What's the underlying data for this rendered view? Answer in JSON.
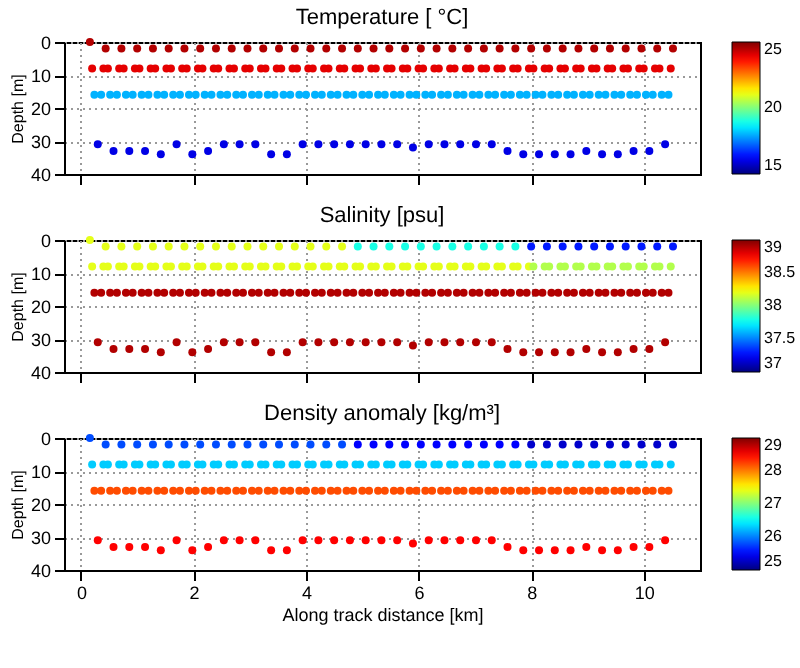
{
  "chart_data": [
    {
      "type": "scatter",
      "title": "Temperature [ °C]",
      "ylabel": "Depth [m]",
      "xlim": [
        -0.3,
        11
      ],
      "xticks": [
        0,
        2,
        4,
        6,
        8,
        10
      ],
      "ylim": [
        40,
        0
      ],
      "yticks": [
        0,
        10,
        20,
        30,
        40
      ],
      "clim": [
        15,
        25
      ],
      "cticks": [
        15,
        20,
        25
      ],
      "grid": true,
      "marker": "circle",
      "tick_labels": "y",
      "series": [
        {
          "x": [
            0.16,
            0.2,
            0.24,
            0.3,
            0.36,
            0.4,
            0.44,
            0.48,
            0.52,
            0.58,
            0.64,
            0.68,
            0.72,
            0.76,
            0.8,
            0.86,
            0.92,
            0.96,
            1,
            1.04,
            1.08,
            1.14,
            1.2,
            1.24,
            1.28,
            1.32,
            1.36,
            1.42,
            1.48,
            1.52,
            1.56,
            1.6,
            1.64,
            1.7,
            1.76,
            1.8,
            1.84,
            1.88,
            1.92,
            1.98,
            2.04,
            2.08,
            2.12,
            2.16,
            2.2,
            2.26,
            2.32,
            2.36,
            2.4,
            2.44,
            2.48,
            2.54,
            2.6,
            2.64,
            2.68,
            2.72,
            2.76,
            2.82,
            2.88,
            2.92,
            2.96,
            3,
            3.04,
            3.1,
            3.16,
            3.2,
            3.24,
            3.28,
            3.32,
            3.38,
            3.44,
            3.48,
            3.52,
            3.56,
            3.6,
            3.66,
            3.72,
            3.76,
            3.8,
            3.84,
            3.88,
            3.94,
            4,
            4.04,
            4.08,
            4.12,
            4.16,
            4.22,
            4.28,
            4.32,
            4.36,
            4.4,
            4.44,
            4.5,
            4.56,
            4.6,
            4.64,
            4.68,
            4.72,
            4.78,
            4.84,
            4.88,
            4.92,
            4.96,
            5,
            5.06,
            5.12,
            5.16,
            5.2,
            5.24,
            5.28,
            5.34,
            5.4,
            5.44,
            5.48,
            5.52,
            5.56,
            5.62,
            5.68,
            5.72,
            5.76,
            5.8,
            5.84,
            5.9,
            5.96,
            6,
            6.04,
            6.08,
            6.12,
            6.18,
            6.24,
            6.28,
            6.32,
            6.36,
            6.4,
            6.46,
            6.52,
            6.56,
            6.6,
            6.64,
            6.68,
            6.74,
            6.8,
            6.84,
            6.88,
            6.92,
            6.96,
            7.02,
            7.08,
            7.12,
            7.16,
            7.2,
            7.24,
            7.3,
            7.36,
            7.4,
            7.44,
            7.48,
            7.52,
            7.58,
            7.64,
            7.68,
            7.72,
            7.76,
            7.8,
            7.86,
            7.92,
            7.96,
            8,
            8.04,
            8.08,
            8.14,
            8.2,
            8.24,
            8.28,
            8.32,
            8.36,
            8.42,
            8.48,
            8.52,
            8.56,
            8.6,
            8.64,
            8.7,
            8.76,
            8.8,
            8.84,
            8.88,
            8.92,
            8.98,
            9.04,
            9.08,
            9.12,
            9.16,
            9.2,
            9.26,
            9.32,
            9.36,
            9.4,
            9.44,
            9.48,
            9.54,
            9.6,
            9.64,
            9.68,
            9.72,
            9.76,
            9.82,
            9.88,
            9.92,
            9.96,
            10,
            10.04,
            10.1,
            10.16,
            10.2,
            10.24,
            10.28,
            10.32,
            10.38,
            10.44,
            10.48,
            10.52
          ],
          "values": [
            0,
            8,
            16,
            31,
            16,
            8,
            2,
            8,
            16,
            33,
            16,
            8,
            2,
            8,
            16,
            33,
            16,
            8,
            2,
            8,
            16,
            33,
            16,
            8,
            2,
            8,
            16,
            34,
            16,
            8,
            2,
            8,
            16,
            31,
            16,
            8,
            2,
            8,
            16,
            34,
            16,
            8,
            2,
            8,
            16,
            33,
            16,
            8,
            2,
            8,
            16,
            31,
            16,
            8,
            2,
            8,
            16,
            31,
            16,
            8,
            2,
            8,
            16,
            31,
            16,
            8,
            2,
            8,
            16,
            34,
            16,
            8,
            2,
            8,
            16,
            34,
            16,
            8,
            2,
            8,
            16,
            31,
            16,
            8,
            2,
            8,
            16,
            31,
            16,
            8,
            2,
            8,
            16,
            31,
            16,
            8,
            2,
            8,
            16,
            31,
            16,
            8,
            2,
            8,
            16,
            31,
            16,
            8,
            2,
            8,
            16,
            31,
            16,
            8,
            2,
            8,
            16,
            31,
            16,
            8,
            2,
            8,
            16,
            32,
            16,
            8,
            2,
            8,
            16,
            31,
            16,
            8,
            2,
            8,
            16,
            31,
            16,
            8,
            2,
            8,
            16,
            31,
            16,
            8,
            2,
            8,
            16,
            31,
            16,
            8,
            2,
            8,
            16,
            31,
            16,
            8,
            2,
            8,
            16,
            33,
            16,
            8,
            2,
            8,
            16,
            34,
            16,
            8,
            2,
            8,
            16,
            34,
            16,
            8,
            2,
            8,
            16,
            34,
            16,
            8,
            2,
            8,
            16,
            34,
            16,
            8,
            2,
            8,
            16,
            33,
            16,
            8,
            2,
            8,
            16,
            34,
            16,
            8,
            2,
            8,
            16,
            34,
            16,
            8,
            2,
            8,
            16,
            33,
            16,
            8,
            2,
            8,
            16,
            33,
            16,
            8,
            2,
            8,
            16,
            31,
            16,
            8,
            2
          ],
          "cvalues": [
            24.5,
            24,
            18,
            16,
            18,
            24,
            24.5,
            24,
            18,
            16,
            18,
            24,
            24.5,
            24,
            18,
            16,
            18,
            24,
            24.5,
            24,
            18,
            16,
            18,
            24,
            24.5,
            24,
            18,
            16,
            18,
            24,
            24.5,
            24,
            18,
            16,
            18,
            24,
            24.5,
            24,
            18,
            16,
            18,
            24,
            24.5,
            24,
            18,
            16,
            18,
            24,
            24.5,
            24,
            18,
            16,
            18,
            24,
            24.5,
            24,
            18,
            16,
            18,
            24,
            24.5,
            24,
            18,
            16,
            18,
            24,
            24.5,
            24,
            18,
            16,
            18,
            24,
            24.5,
            24,
            18,
            16,
            18,
            24,
            24.5,
            24,
            18,
            16,
            18,
            24,
            24.5,
            24,
            18,
            16,
            18,
            24,
            24.5,
            24,
            18,
            16,
            18,
            24,
            24.5,
            24,
            18,
            16,
            18,
            24,
            24.5,
            24,
            18,
            16,
            18,
            24,
            24.5,
            24,
            18,
            16,
            18,
            24,
            24.5,
            24,
            18,
            16,
            18,
            24,
            24.5,
            24,
            18,
            16,
            18,
            24,
            24.5,
            24,
            18,
            16,
            18,
            24,
            24.5,
            24,
            18,
            16,
            18,
            24,
            24.5,
            24,
            18,
            16,
            18,
            24,
            24.5,
            24,
            18,
            16,
            18,
            24,
            24.5,
            24,
            18,
            16,
            18,
            24,
            24.5,
            24,
            18,
            16,
            18,
            24,
            24.5,
            24,
            18,
            16,
            18,
            24,
            24.5,
            24,
            18,
            16,
            18,
            24,
            24.5,
            24,
            18,
            16,
            18,
            24,
            24.5,
            24,
            18,
            16,
            18,
            24,
            24.5,
            24,
            18,
            16,
            18,
            24,
            24.5,
            24,
            18,
            16,
            18,
            24,
            24.5,
            24,
            18,
            16,
            18,
            24,
            24.5,
            24,
            18,
            16,
            18,
            24,
            24.5,
            24,
            18,
            16,
            18,
            24,
            24.5,
            24,
            18,
            16,
            18,
            24,
            24.5
          ]
        }
      ]
    },
    {
      "type": "scatter",
      "title": "Salinity [psu]",
      "ylabel": "Depth [m]",
      "xlim": [
        -0.3,
        11
      ],
      "xticks": [
        0,
        2,
        4,
        6,
        8,
        10
      ],
      "ylim": [
        40,
        0
      ],
      "yticks": [
        0,
        10,
        20,
        30,
        40
      ],
      "clim": [
        37,
        39
      ],
      "cticks": [
        37,
        37.5,
        38,
        38.5,
        39
      ],
      "grid": true,
      "marker": "circle",
      "tick_labels": "y",
      "series": [
        {
          "x": [
            0.16,
            0.2,
            0.24,
            0.3,
            0.36,
            0.4,
            0.44,
            0.48,
            0.52,
            0.58,
            0.64,
            0.68,
            0.72,
            0.76,
            0.8,
            0.86,
            0.92,
            0.96,
            1,
            1.04,
            1.08,
            1.14,
            1.2,
            1.24,
            1.28,
            1.32,
            1.36,
            1.42,
            1.48,
            1.52,
            1.56,
            1.6,
            1.64,
            1.7,
            1.76,
            1.8,
            1.84,
            1.88,
            1.92,
            1.98,
            2.04,
            2.08,
            2.12,
            2.16,
            2.2,
            2.26,
            2.32,
            2.36,
            2.4,
            2.44,
            2.48,
            2.54,
            2.6,
            2.64,
            2.68,
            2.72,
            2.76,
            2.82,
            2.88,
            2.92,
            2.96,
            3,
            3.04,
            3.1,
            3.16,
            3.2,
            3.24,
            3.28,
            3.32,
            3.38,
            3.44,
            3.48,
            3.52,
            3.56,
            3.6,
            3.66,
            3.72,
            3.76,
            3.8,
            3.84,
            3.88,
            3.94,
            4,
            4.04,
            4.08,
            4.12,
            4.16,
            4.22,
            4.28,
            4.32,
            4.36,
            4.4,
            4.44,
            4.5,
            4.56,
            4.6,
            4.64,
            4.68,
            4.72,
            4.78,
            4.84,
            4.88,
            4.92,
            4.96,
            5,
            5.06,
            5.12,
            5.16,
            5.2,
            5.24,
            5.28,
            5.34,
            5.4,
            5.44,
            5.48,
            5.52,
            5.56,
            5.62,
            5.68,
            5.72,
            5.76,
            5.8,
            5.84,
            5.9,
            5.96,
            6,
            6.04,
            6.08,
            6.12,
            6.18,
            6.24,
            6.28,
            6.32,
            6.36,
            6.4,
            6.46,
            6.52,
            6.56,
            6.6,
            6.64,
            6.68,
            6.74,
            6.8,
            6.84,
            6.88,
            6.92,
            6.96,
            7.02,
            7.08,
            7.12,
            7.16,
            7.2,
            7.24,
            7.3,
            7.36,
            7.4,
            7.44,
            7.48,
            7.52,
            7.58,
            7.64,
            7.68,
            7.72,
            7.76,
            7.8,
            7.86,
            7.92,
            7.96,
            8,
            8.04,
            8.08,
            8.14,
            8.2,
            8.24,
            8.28,
            8.32,
            8.36,
            8.42,
            8.48,
            8.52,
            8.56,
            8.6,
            8.64,
            8.7,
            8.76,
            8.8,
            8.84,
            8.88,
            8.92,
            8.98,
            9.04,
            9.08,
            9.12,
            9.16,
            9.2,
            9.26,
            9.32,
            9.36,
            9.4,
            9.44,
            9.48,
            9.54,
            9.6,
            9.64,
            9.68,
            9.72,
            9.76,
            9.82,
            9.88,
            9.92,
            9.96,
            10,
            10.04,
            10.1,
            10.16,
            10.2,
            10.24,
            10.28,
            10.32,
            10.38,
            10.44,
            10.48,
            10.52
          ],
          "values": [
            0,
            8,
            16,
            31,
            16,
            8,
            2,
            8,
            16,
            33,
            16,
            8,
            2,
            8,
            16,
            33,
            16,
            8,
            2,
            8,
            16,
            33,
            16,
            8,
            2,
            8,
            16,
            34,
            16,
            8,
            2,
            8,
            16,
            31,
            16,
            8,
            2,
            8,
            16,
            34,
            16,
            8,
            2,
            8,
            16,
            33,
            16,
            8,
            2,
            8,
            16,
            31,
            16,
            8,
            2,
            8,
            16,
            31,
            16,
            8,
            2,
            8,
            16,
            31,
            16,
            8,
            2,
            8,
            16,
            34,
            16,
            8,
            2,
            8,
            16,
            34,
            16,
            8,
            2,
            8,
            16,
            31,
            16,
            8,
            2,
            8,
            16,
            31,
            16,
            8,
            2,
            8,
            16,
            31,
            16,
            8,
            2,
            8,
            16,
            31,
            16,
            8,
            2,
            8,
            16,
            31,
            16,
            8,
            2,
            8,
            16,
            31,
            16,
            8,
            2,
            8,
            16,
            31,
            16,
            8,
            2,
            8,
            16,
            32,
            16,
            8,
            2,
            8,
            16,
            31,
            16,
            8,
            2,
            8,
            16,
            31,
            16,
            8,
            2,
            8,
            16,
            31,
            16,
            8,
            2,
            8,
            16,
            31,
            16,
            8,
            2,
            8,
            16,
            31,
            16,
            8,
            2,
            8,
            16,
            33,
            16,
            8,
            2,
            8,
            16,
            34,
            16,
            8,
            2,
            8,
            16,
            34,
            16,
            8,
            2,
            8,
            16,
            34,
            16,
            8,
            2,
            8,
            16,
            34,
            16,
            8,
            2,
            8,
            16,
            33,
            16,
            8,
            2,
            8,
            16,
            34,
            16,
            8,
            2,
            8,
            16,
            34,
            16,
            8,
            2,
            8,
            16,
            33,
            16,
            8,
            2,
            8,
            16,
            33,
            16,
            8,
            2,
            8,
            16,
            31,
            16,
            8,
            2
          ],
          "cvalues": [
            38.2,
            38.2,
            38.9,
            38.9,
            38.9,
            38.2,
            38.2,
            38.2,
            38.9,
            38.9,
            38.9,
            38.2,
            38.2,
            38.2,
            38.9,
            38.9,
            38.9,
            38.2,
            38.2,
            38.2,
            38.9,
            38.9,
            38.9,
            38.2,
            38.2,
            38.2,
            38.9,
            38.9,
            38.9,
            38.2,
            38.2,
            38.2,
            38.9,
            38.9,
            38.9,
            38.2,
            38.2,
            38.2,
            38.9,
            38.9,
            38.9,
            38.2,
            38.2,
            38.2,
            38.9,
            38.9,
            38.9,
            38.2,
            38.2,
            38.2,
            38.9,
            38.9,
            38.9,
            38.2,
            38.2,
            38.2,
            38.9,
            38.9,
            38.9,
            38.2,
            38.2,
            38.2,
            38.9,
            38.9,
            38.9,
            38.2,
            38.2,
            38.2,
            38.9,
            38.9,
            38.9,
            38.2,
            38.2,
            38.2,
            38.9,
            38.9,
            38.9,
            38.2,
            38.2,
            38.2,
            38.9,
            38.9,
            38.9,
            38.2,
            38.2,
            38.2,
            38.9,
            38.9,
            38.9,
            38.2,
            38.2,
            38.2,
            38.9,
            38.9,
            38.9,
            38.2,
            38.2,
            38.2,
            38.9,
            38.9,
            38.9,
            38.2,
            37.8,
            38.2,
            38.9,
            38.9,
            38.9,
            38.2,
            37.8,
            38.2,
            38.9,
            38.9,
            38.9,
            38.2,
            37.8,
            38.2,
            38.9,
            38.9,
            38.9,
            38.2,
            37.8,
            38.2,
            38.9,
            38.9,
            38.9,
            38.2,
            37.8,
            38.2,
            38.9,
            38.9,
            38.9,
            38.2,
            37.8,
            38.2,
            38.9,
            38.9,
            38.9,
            38.2,
            37.8,
            38.2,
            38.9,
            38.9,
            38.9,
            38.2,
            37.8,
            38.2,
            38.9,
            38.9,
            38.9,
            38.2,
            37.8,
            38.2,
            38.9,
            38.9,
            38.9,
            38.2,
            37.8,
            38.2,
            38.9,
            38.9,
            38.9,
            38.2,
            37.8,
            38.2,
            38.9,
            38.9,
            38.9,
            38.2,
            37.3,
            38.1,
            38.9,
            38.9,
            38.9,
            38.1,
            37.3,
            38.1,
            38.9,
            38.9,
            38.9,
            38.1,
            37.3,
            38.1,
            38.9,
            38.9,
            38.9,
            38.1,
            37.3,
            38.1,
            38.9,
            38.9,
            38.9,
            38.1,
            37.3,
            38.1,
            38.9,
            38.9,
            38.9,
            38.1,
            37.3,
            38.1,
            38.9,
            38.9,
            38.9,
            38.1,
            37.3,
            38.1,
            38.9,
            38.9,
            38.9,
            38.1,
            37.3,
            38.1,
            38.9,
            38.9,
            38.9,
            38.1,
            37.3,
            38.1,
            38.9,
            38.9,
            38.9,
            38.1,
            37.3
          ]
        }
      ]
    },
    {
      "type": "scatter",
      "title": "Density anomaly [kg/m³]",
      "xlabel": "Along track distance [km]",
      "ylabel": "Depth [m]",
      "xlim": [
        -0.3,
        11
      ],
      "xticks": [
        0,
        2,
        4,
        6,
        8,
        10
      ],
      "ylim": [
        40,
        0
      ],
      "yticks": [
        0,
        10,
        20,
        30,
        40
      ],
      "clim": [
        25,
        29
      ],
      "cticks": [
        25,
        26,
        27,
        28,
        29
      ],
      "grid": true,
      "marker": "circle",
      "series": [
        {
          "x": [
            0.16,
            0.2,
            0.24,
            0.3,
            0.36,
            0.4,
            0.44,
            0.48,
            0.52,
            0.58,
            0.64,
            0.68,
            0.72,
            0.76,
            0.8,
            0.86,
            0.92,
            0.96,
            1,
            1.04,
            1.08,
            1.14,
            1.2,
            1.24,
            1.28,
            1.32,
            1.36,
            1.42,
            1.48,
            1.52,
            1.56,
            1.6,
            1.64,
            1.7,
            1.76,
            1.8,
            1.84,
            1.88,
            1.92,
            1.98,
            2.04,
            2.08,
            2.12,
            2.16,
            2.2,
            2.26,
            2.32,
            2.36,
            2.4,
            2.44,
            2.48,
            2.54,
            2.6,
            2.64,
            2.68,
            2.72,
            2.76,
            2.82,
            2.88,
            2.92,
            2.96,
            3,
            3.04,
            3.1,
            3.16,
            3.2,
            3.24,
            3.28,
            3.32,
            3.38,
            3.44,
            3.48,
            3.52,
            3.56,
            3.6,
            3.66,
            3.72,
            3.76,
            3.8,
            3.84,
            3.88,
            3.94,
            4,
            4.04,
            4.08,
            4.12,
            4.16,
            4.22,
            4.28,
            4.32,
            4.36,
            4.4,
            4.44,
            4.5,
            4.56,
            4.6,
            4.64,
            4.68,
            4.72,
            4.78,
            4.84,
            4.88,
            4.92,
            4.96,
            5,
            5.06,
            5.12,
            5.16,
            5.2,
            5.24,
            5.28,
            5.34,
            5.4,
            5.44,
            5.48,
            5.52,
            5.56,
            5.62,
            5.68,
            5.72,
            5.76,
            5.8,
            5.84,
            5.9,
            5.96,
            6,
            6.04,
            6.08,
            6.12,
            6.18,
            6.24,
            6.28,
            6.32,
            6.36,
            6.4,
            6.46,
            6.52,
            6.56,
            6.6,
            6.64,
            6.68,
            6.74,
            6.8,
            6.84,
            6.88,
            6.92,
            6.96,
            7.02,
            7.08,
            7.12,
            7.16,
            7.2,
            7.24,
            7.3,
            7.36,
            7.4,
            7.44,
            7.48,
            7.52,
            7.58,
            7.64,
            7.68,
            7.72,
            7.76,
            7.8,
            7.86,
            7.92,
            7.96,
            8,
            8.04,
            8.08,
            8.14,
            8.2,
            8.24,
            8.28,
            8.32,
            8.36,
            8.42,
            8.48,
            8.52,
            8.56,
            8.6,
            8.64,
            8.7,
            8.76,
            8.8,
            8.84,
            8.88,
            8.92,
            8.98,
            9.04,
            9.08,
            9.12,
            9.16,
            9.2,
            9.26,
            9.32,
            9.36,
            9.4,
            9.44,
            9.48,
            9.54,
            9.6,
            9.64,
            9.68,
            9.72,
            9.76,
            9.82,
            9.88,
            9.92,
            9.96,
            10,
            10.04,
            10.1,
            10.16,
            10.2,
            10.24,
            10.28,
            10.32,
            10.38,
            10.44,
            10.48,
            10.52
          ],
          "values": [
            0,
            8,
            16,
            31,
            16,
            8,
            2,
            8,
            16,
            33,
            16,
            8,
            2,
            8,
            16,
            33,
            16,
            8,
            2,
            8,
            16,
            33,
            16,
            8,
            2,
            8,
            16,
            34,
            16,
            8,
            2,
            8,
            16,
            31,
            16,
            8,
            2,
            8,
            16,
            34,
            16,
            8,
            2,
            8,
            16,
            33,
            16,
            8,
            2,
            8,
            16,
            31,
            16,
            8,
            2,
            8,
            16,
            31,
            16,
            8,
            2,
            8,
            16,
            31,
            16,
            8,
            2,
            8,
            16,
            34,
            16,
            8,
            2,
            8,
            16,
            34,
            16,
            8,
            2,
            8,
            16,
            31,
            16,
            8,
            2,
            8,
            16,
            31,
            16,
            8,
            2,
            8,
            16,
            31,
            16,
            8,
            2,
            8,
            16,
            31,
            16,
            8,
            2,
            8,
            16,
            31,
            16,
            8,
            2,
            8,
            16,
            31,
            16,
            8,
            2,
            8,
            16,
            31,
            16,
            8,
            2,
            8,
            16,
            32,
            16,
            8,
            2,
            8,
            16,
            31,
            16,
            8,
            2,
            8,
            16,
            31,
            16,
            8,
            2,
            8,
            16,
            31,
            16,
            8,
            2,
            8,
            16,
            31,
            16,
            8,
            2,
            8,
            16,
            31,
            16,
            8,
            2,
            8,
            16,
            33,
            16,
            8,
            2,
            8,
            16,
            34,
            16,
            8,
            2,
            8,
            16,
            34,
            16,
            8,
            2,
            8,
            16,
            34,
            16,
            8,
            2,
            8,
            16,
            34,
            16,
            8,
            2,
            8,
            16,
            33,
            16,
            8,
            2,
            8,
            16,
            34,
            16,
            8,
            2,
            8,
            16,
            34,
            16,
            8,
            2,
            8,
            16,
            33,
            16,
            8,
            2,
            8,
            16,
            33,
            16,
            8,
            2,
            8,
            16,
            31,
            16,
            8,
            2
          ],
          "cvalues": [
            25.8,
            26.3,
            28.2,
            28.5,
            28.2,
            26.3,
            25.8,
            26.3,
            28.2,
            28.5,
            28.2,
            26.3,
            25.8,
            26.3,
            28.2,
            28.5,
            28.2,
            26.3,
            25.8,
            26.3,
            28.2,
            28.5,
            28.2,
            26.3,
            25.8,
            26.3,
            28.2,
            28.5,
            28.2,
            26.3,
            25.8,
            26.3,
            28.2,
            28.5,
            28.2,
            26.3,
            25.8,
            26.3,
            28.2,
            28.5,
            28.2,
            26.3,
            25.8,
            26.3,
            28.2,
            28.5,
            28.2,
            26.3,
            25.8,
            26.3,
            28.2,
            28.5,
            28.2,
            26.3,
            25.8,
            26.3,
            28.2,
            28.5,
            28.2,
            26.3,
            25.8,
            26.3,
            28.2,
            28.5,
            28.2,
            26.3,
            25.8,
            26.3,
            28.2,
            28.5,
            28.2,
            26.3,
            25.8,
            26.3,
            28.2,
            28.5,
            28.2,
            26.3,
            25.8,
            26.3,
            28.2,
            28.5,
            28.2,
            26.3,
            25.8,
            26.3,
            28.2,
            28.5,
            28.2,
            26.3,
            25.8,
            26.3,
            28.2,
            28.5,
            28.2,
            26.3,
            25.8,
            26.3,
            28.2,
            28.5,
            28.2,
            26.3,
            25.5,
            26.3,
            28.2,
            28.5,
            28.2,
            26.3,
            25.5,
            26.3,
            28.2,
            28.5,
            28.2,
            26.3,
            25.5,
            26.3,
            28.2,
            28.5,
            28.2,
            26.3,
            25.5,
            26.3,
            28.2,
            28.5,
            28.2,
            26.3,
            25.5,
            26.3,
            28.2,
            28.5,
            28.2,
            26.3,
            25.5,
            26.3,
            28.2,
            28.5,
            28.2,
            26.3,
            25.5,
            26.3,
            28.2,
            28.5,
            28.2,
            26.3,
            25.5,
            26.3,
            28.2,
            28.5,
            28.2,
            26.3,
            25.5,
            26.3,
            28.2,
            28.5,
            28.2,
            26.3,
            25.5,
            26.3,
            28.2,
            28.5,
            28.2,
            26.3,
            25.5,
            26.3,
            28.2,
            28.5,
            28.2,
            26.3,
            25.3,
            26.3,
            28.2,
            28.5,
            28.2,
            26.3,
            25.3,
            26.3,
            28.2,
            28.5,
            28.2,
            26.3,
            25.3,
            26.3,
            28.2,
            28.5,
            28.2,
            26.3,
            25.3,
            26.3,
            28.2,
            28.5,
            28.2,
            26.3,
            25.3,
            26.3,
            28.2,
            28.5,
            28.2,
            26.3,
            25.3,
            26.3,
            28.2,
            28.5,
            28.2,
            26.3,
            25.3,
            26.3,
            28.2,
            28.5,
            28.2,
            26.3,
            25.3,
            26.3,
            28.2,
            28.5,
            28.2,
            26.3,
            25.3,
            26.3,
            28.2,
            28.5,
            28.2,
            26.3,
            25.3
          ]
        }
      ]
    }
  ]
}
